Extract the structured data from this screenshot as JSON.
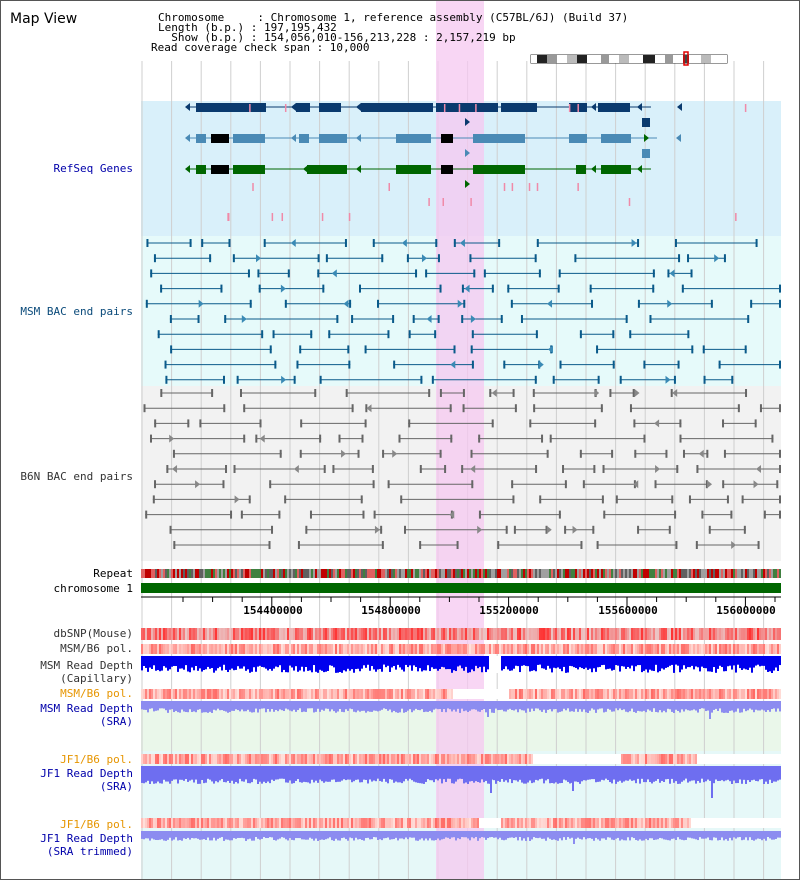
{
  "title": "Map View",
  "info": {
    "line1": "Chromosome     : Chromosome 1, reference assembly (C57BL/6J) (Build 37)",
    "line2": "Length (b.p.) : 197,195,432",
    "line3": "  Show (b.p.) : 154,056,010-156,213,228 : 2,157,219 bp",
    "line4": "Read coverage check span : 10,000"
  },
  "tracks": {
    "refseq": {
      "label": "RefSeq Genes",
      "color": "#0000aa",
      "bg": "#d9f0fa",
      "gene_dark": "#0a3a6e",
      "gene_mid": "#4a8ab5",
      "gene_green": "#006600",
      "small_mark": "#f08aa8"
    },
    "msm_bac": {
      "label": "MSM BAC end pairs",
      "color": "#0a4a7a",
      "bg": "#e6fafa"
    },
    "b6n_bac": {
      "label": "B6N BAC end pairs",
      "color": "#333333",
      "bg": "#f2f2f2"
    },
    "repeat": {
      "label": "Repeat"
    },
    "chromosome": {
      "label": "chromosome 1",
      "color": "#006600"
    },
    "dbsnp": {
      "label": "dbSNP(Mouse)"
    },
    "msm_b6_pol": {
      "label": "MSM/B6 pol."
    },
    "msm_depth_cap": {
      "label": "MSM Read Depth",
      "label2": "(Capillary)",
      "color": "#0000ee"
    },
    "msm_b6_pol2": {
      "label": "MSM/B6 pol.",
      "color": "#e69500"
    },
    "msm_depth_sra": {
      "label": "MSM Read Depth",
      "label2": "(SRA)",
      "color": "#0000aa",
      "bar": "#8c8cf0"
    },
    "jf1_b6_pol": {
      "label": "JF1/B6 pol.",
      "color": "#e69500"
    },
    "jf1_depth_sra": {
      "label": "JF1 Read Depth",
      "label2": "(SRA)",
      "color": "#0000aa",
      "bar": "#6e6ef0"
    },
    "jf1_b6_pol2": {
      "label": "JF1/B6 pol.",
      "color": "#e69500"
    },
    "jf1_depth_trim": {
      "label": "JF1 Read Depth",
      "label2": "(SRA trimmed)",
      "color": "#0000aa",
      "bar": "#8c8cf0"
    }
  },
  "axis": {
    "ticks": [
      "154400000",
      "154800000",
      "155200000",
      "155600000",
      "156000000"
    ]
  },
  "highlight_color": "#f5c8f0"
}
